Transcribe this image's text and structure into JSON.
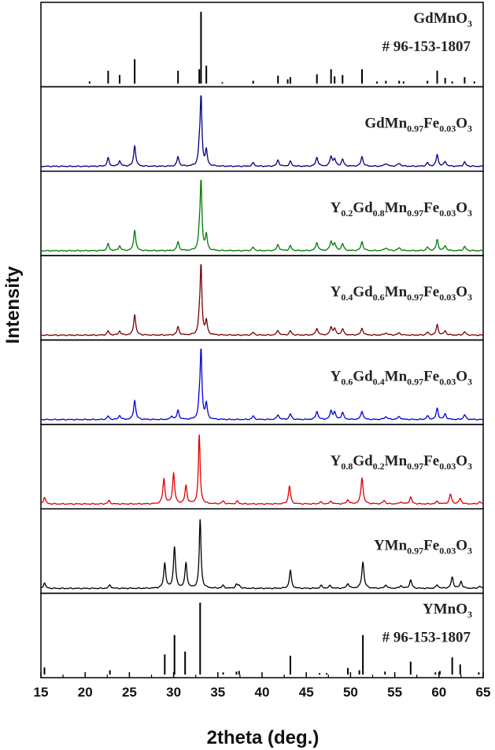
{
  "chart_data": {
    "type": "line",
    "xlabel": "2theta (deg.)",
    "ylabel": "Intensity",
    "xlim": [
      15,
      65
    ],
    "xticks": [
      15,
      20,
      25,
      30,
      35,
      40,
      45,
      50,
      55,
      60,
      65
    ],
    "panels": [
      {
        "kind": "reference",
        "color": "#000000",
        "label_parts": [
          [
            "GdMnO",
            false
          ],
          [
            "3",
            true
          ]
        ],
        "code": "# 96-153-1807",
        "peaks": [
          [
            20.5,
            0.03
          ],
          [
            22.6,
            0.18
          ],
          [
            23.9,
            0.12
          ],
          [
            25.6,
            0.34
          ],
          [
            30.5,
            0.18
          ],
          [
            32.9,
            0.2
          ],
          [
            33.1,
            1.0
          ],
          [
            33.7,
            0.25
          ],
          [
            35.5,
            0.02
          ],
          [
            39.0,
            0.04
          ],
          [
            41.8,
            0.11
          ],
          [
            42.9,
            0.06
          ],
          [
            43.2,
            0.09
          ],
          [
            46.2,
            0.13
          ],
          [
            47.8,
            0.2
          ],
          [
            48.2,
            0.1
          ],
          [
            49.1,
            0.12
          ],
          [
            51.3,
            0.2
          ],
          [
            53.0,
            0.03
          ],
          [
            54.0,
            0.04
          ],
          [
            55.5,
            0.04
          ],
          [
            56.0,
            0.03
          ],
          [
            58.7,
            0.04
          ],
          [
            59.8,
            0.18
          ],
          [
            60.7,
            0.08
          ],
          [
            61.5,
            0.03
          ],
          [
            62.9,
            0.09
          ],
          [
            64.0,
            0.03
          ]
        ]
      },
      {
        "kind": "pattern",
        "color": "#00007a",
        "label_parts": [
          [
            "GdMn",
            false
          ],
          [
            "0.97",
            true
          ],
          [
            "Fe",
            false
          ],
          [
            "0.03",
            true
          ],
          [
            "O",
            false
          ],
          [
            "3",
            true
          ]
        ],
        "peaks": [
          [
            22.6,
            0.12,
            0.14
          ],
          [
            23.9,
            0.08,
            0.14
          ],
          [
            25.6,
            0.3,
            0.14
          ],
          [
            30.5,
            0.14,
            0.14
          ],
          [
            32.9,
            0.2,
            0.12
          ],
          [
            33.1,
            1.0,
            0.12
          ],
          [
            33.7,
            0.22,
            0.13
          ],
          [
            39.0,
            0.05,
            0.15
          ],
          [
            41.8,
            0.09,
            0.15
          ],
          [
            43.2,
            0.07,
            0.15
          ],
          [
            46.2,
            0.13,
            0.15
          ],
          [
            47.8,
            0.14,
            0.15
          ],
          [
            48.2,
            0.1,
            0.15
          ],
          [
            49.1,
            0.1,
            0.15
          ],
          [
            51.3,
            0.14,
            0.15
          ],
          [
            54.0,
            0.04,
            0.2
          ],
          [
            55.5,
            0.04,
            0.2
          ],
          [
            58.7,
            0.05,
            0.15
          ],
          [
            59.8,
            0.17,
            0.14
          ],
          [
            60.7,
            0.07,
            0.15
          ],
          [
            62.9,
            0.06,
            0.15
          ]
        ]
      },
      {
        "kind": "pattern",
        "color": "#007a00",
        "label_parts": [
          [
            "Y",
            false
          ],
          [
            "0.2",
            true
          ],
          [
            "Gd",
            false
          ],
          [
            "0.8",
            true
          ],
          [
            "Mn",
            false
          ],
          [
            "0.97",
            true
          ],
          [
            "Fe",
            false
          ],
          [
            "0.03",
            true
          ],
          [
            "O",
            false
          ],
          [
            "3",
            true
          ]
        ],
        "peaks": [
          [
            22.6,
            0.1,
            0.14
          ],
          [
            23.9,
            0.07,
            0.14
          ],
          [
            25.6,
            0.3,
            0.14
          ],
          [
            30.5,
            0.13,
            0.14
          ],
          [
            32.9,
            0.18,
            0.12
          ],
          [
            33.1,
            1.0,
            0.12
          ],
          [
            33.7,
            0.22,
            0.13
          ],
          [
            39.0,
            0.05,
            0.15
          ],
          [
            41.8,
            0.09,
            0.15
          ],
          [
            43.2,
            0.07,
            0.15
          ],
          [
            46.2,
            0.12,
            0.15
          ],
          [
            47.8,
            0.13,
            0.15
          ],
          [
            48.2,
            0.1,
            0.15
          ],
          [
            49.1,
            0.1,
            0.15
          ],
          [
            51.3,
            0.13,
            0.15
          ],
          [
            54.0,
            0.04,
            0.2
          ],
          [
            55.5,
            0.04,
            0.2
          ],
          [
            58.7,
            0.05,
            0.15
          ],
          [
            59.8,
            0.16,
            0.14
          ],
          [
            60.7,
            0.07,
            0.15
          ],
          [
            62.9,
            0.06,
            0.15
          ]
        ]
      },
      {
        "kind": "pattern",
        "color": "#7a0000",
        "label_parts": [
          [
            "Y",
            false
          ],
          [
            "0.4",
            true
          ],
          [
            "Gd",
            false
          ],
          [
            "0.6",
            true
          ],
          [
            "Mn",
            false
          ],
          [
            "0.97",
            true
          ],
          [
            "Fe",
            false
          ],
          [
            "0.03",
            true
          ],
          [
            "O",
            false
          ],
          [
            "3",
            true
          ]
        ],
        "peaks": [
          [
            22.6,
            0.06,
            0.14
          ],
          [
            23.9,
            0.06,
            0.14
          ],
          [
            25.6,
            0.3,
            0.14
          ],
          [
            30.5,
            0.12,
            0.14
          ],
          [
            32.9,
            0.18,
            0.12
          ],
          [
            33.1,
            1.0,
            0.12
          ],
          [
            33.7,
            0.2,
            0.13
          ],
          [
            39.0,
            0.04,
            0.15
          ],
          [
            41.8,
            0.07,
            0.15
          ],
          [
            43.2,
            0.06,
            0.15
          ],
          [
            46.2,
            0.1,
            0.15
          ],
          [
            47.8,
            0.11,
            0.15
          ],
          [
            48.2,
            0.09,
            0.15
          ],
          [
            49.1,
            0.09,
            0.15
          ],
          [
            51.3,
            0.1,
            0.15
          ],
          [
            54.0,
            0.03,
            0.2
          ],
          [
            55.5,
            0.03,
            0.2
          ],
          [
            58.7,
            0.04,
            0.15
          ],
          [
            59.8,
            0.15,
            0.14
          ],
          [
            60.7,
            0.06,
            0.15
          ],
          [
            62.9,
            0.05,
            0.15
          ]
        ]
      },
      {
        "kind": "pattern",
        "color": "#0000e0",
        "label_parts": [
          [
            "Y",
            false
          ],
          [
            "0.6",
            true
          ],
          [
            "Gd",
            false
          ],
          [
            "0.4",
            true
          ],
          [
            "Mn",
            false
          ],
          [
            "0.97",
            true
          ],
          [
            "Fe",
            false
          ],
          [
            "0.03",
            true
          ],
          [
            "O",
            false
          ],
          [
            "3",
            true
          ]
        ],
        "peaks": [
          [
            22.6,
            0.05,
            0.14
          ],
          [
            23.9,
            0.06,
            0.14
          ],
          [
            25.6,
            0.28,
            0.14
          ],
          [
            29.8,
            0.05,
            0.14
          ],
          [
            30.5,
            0.13,
            0.14
          ],
          [
            32.9,
            0.18,
            0.12
          ],
          [
            33.1,
            1.0,
            0.12
          ],
          [
            33.7,
            0.22,
            0.13
          ],
          [
            39.0,
            0.05,
            0.15
          ],
          [
            41.8,
            0.07,
            0.15
          ],
          [
            43.2,
            0.08,
            0.15
          ],
          [
            46.2,
            0.12,
            0.15
          ],
          [
            47.8,
            0.12,
            0.15
          ],
          [
            48.2,
            0.1,
            0.15
          ],
          [
            49.1,
            0.1,
            0.15
          ],
          [
            51.3,
            0.12,
            0.15
          ],
          [
            54.0,
            0.04,
            0.2
          ],
          [
            55.5,
            0.04,
            0.2
          ],
          [
            58.7,
            0.05,
            0.15
          ],
          [
            59.8,
            0.16,
            0.14
          ],
          [
            60.7,
            0.08,
            0.15
          ],
          [
            62.9,
            0.07,
            0.15
          ]
        ]
      },
      {
        "kind": "pattern",
        "color": "#e00000",
        "label_parts": [
          [
            "Y",
            false
          ],
          [
            "0.8",
            true
          ],
          [
            "Gd",
            false
          ],
          [
            "0.2",
            true
          ],
          [
            "Mn",
            false
          ],
          [
            "0.97",
            true
          ],
          [
            "Fe",
            false
          ],
          [
            "0.03",
            true
          ],
          [
            "O",
            false
          ],
          [
            "3",
            true
          ]
        ],
        "peaks": [
          [
            15.4,
            0.1,
            0.14
          ],
          [
            22.7,
            0.05,
            0.14
          ],
          [
            28.9,
            0.36,
            0.14
          ],
          [
            30.0,
            0.44,
            0.14
          ],
          [
            31.4,
            0.26,
            0.14
          ],
          [
            32.9,
            1.0,
            0.12
          ],
          [
            35.6,
            0.04,
            0.15
          ],
          [
            37.2,
            0.04,
            0.15
          ],
          [
            43.1,
            0.26,
            0.14
          ],
          [
            46.6,
            0.03,
            0.15
          ],
          [
            47.8,
            0.04,
            0.15
          ],
          [
            49.7,
            0.06,
            0.15
          ],
          [
            51.3,
            0.38,
            0.15
          ],
          [
            53.8,
            0.05,
            0.15
          ],
          [
            55.7,
            0.03,
            0.15
          ],
          [
            56.8,
            0.1,
            0.15
          ],
          [
            59.8,
            0.04,
            0.15
          ],
          [
            61.3,
            0.14,
            0.15
          ],
          [
            62.4,
            0.08,
            0.15
          ],
          [
            64.6,
            0.03,
            0.15
          ]
        ]
      },
      {
        "kind": "pattern",
        "color": "#000000",
        "label_parts": [
          [
            "YMn",
            false
          ],
          [
            "0.97",
            true
          ],
          [
            "Fe",
            false
          ],
          [
            "0.03",
            true
          ],
          [
            "O",
            false
          ],
          [
            "3",
            true
          ]
        ],
        "peaks": [
          [
            15.4,
            0.08,
            0.14
          ],
          [
            22.8,
            0.05,
            0.14
          ],
          [
            29.0,
            0.36,
            0.14
          ],
          [
            30.1,
            0.6,
            0.14
          ],
          [
            31.4,
            0.36,
            0.14
          ],
          [
            33.0,
            1.0,
            0.12
          ],
          [
            35.6,
            0.04,
            0.15
          ],
          [
            37.1,
            0.05,
            0.15
          ],
          [
            37.4,
            0.04,
            0.15
          ],
          [
            43.2,
            0.26,
            0.14
          ],
          [
            46.7,
            0.04,
            0.15
          ],
          [
            47.7,
            0.04,
            0.15
          ],
          [
            49.7,
            0.07,
            0.15
          ],
          [
            51.4,
            0.38,
            0.15
          ],
          [
            54.0,
            0.05,
            0.15
          ],
          [
            55.7,
            0.04,
            0.15
          ],
          [
            56.8,
            0.12,
            0.15
          ],
          [
            59.8,
            0.05,
            0.15
          ],
          [
            61.5,
            0.16,
            0.15
          ],
          [
            62.5,
            0.1,
            0.15
          ],
          [
            64.6,
            0.03,
            0.15
          ]
        ]
      },
      {
        "kind": "reference",
        "color": "#000000",
        "label_parts": [
          [
            "YMnO",
            false
          ],
          [
            "3",
            true
          ]
        ],
        "code": "# 96-153-1807",
        "peaks": [
          [
            15.4,
            0.1
          ],
          [
            22.8,
            0.06
          ],
          [
            29.0,
            0.28
          ],
          [
            30.1,
            0.55
          ],
          [
            31.3,
            0.32
          ],
          [
            33.0,
            1.0
          ],
          [
            35.6,
            0.03
          ],
          [
            37.1,
            0.04
          ],
          [
            37.4,
            0.05
          ],
          [
            43.2,
            0.26
          ],
          [
            46.5,
            0.02
          ],
          [
            47.3,
            0.02
          ],
          [
            49.7,
            0.09
          ],
          [
            51.0,
            0.06
          ],
          [
            51.4,
            0.55
          ],
          [
            53.9,
            0.04
          ],
          [
            56.8,
            0.18
          ],
          [
            59.6,
            0.03
          ],
          [
            60.1,
            0.05
          ],
          [
            61.5,
            0.24
          ],
          [
            62.4,
            0.14
          ],
          [
            64.5,
            0.03
          ]
        ]
      }
    ]
  }
}
